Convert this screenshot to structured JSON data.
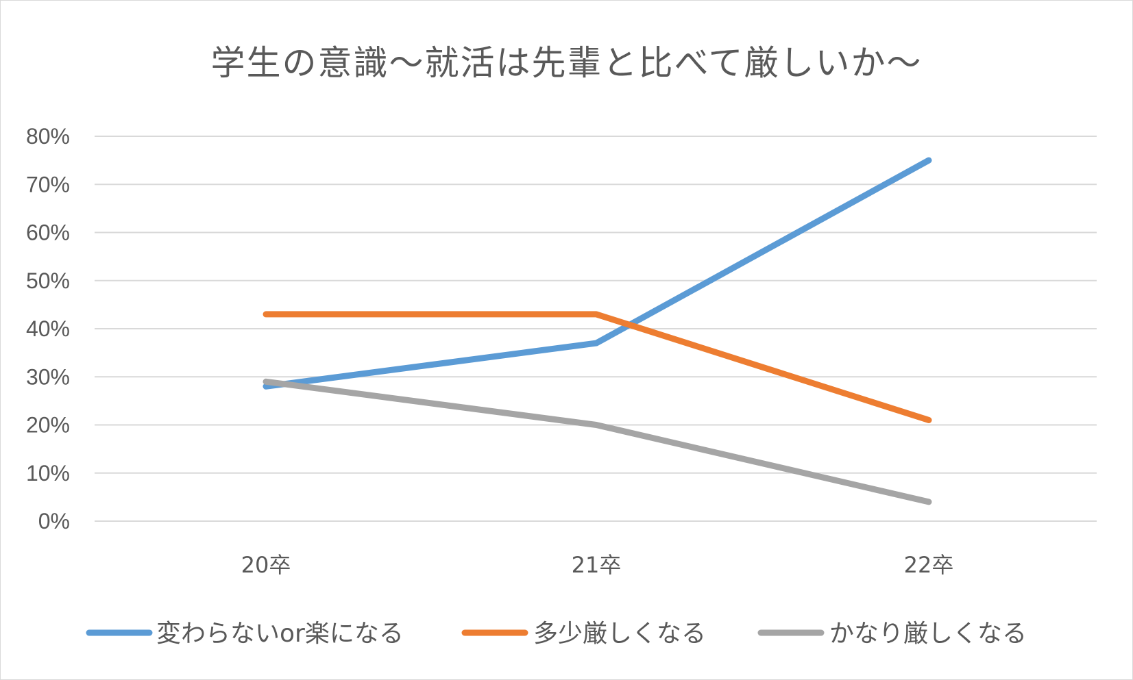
{
  "chart_data": {
    "type": "line",
    "title": "学生の意識〜就活は先輩と比べて厳しいか〜",
    "categories": [
      "20卒",
      "21卒",
      "22卒"
    ],
    "y_ticks": [
      "0%",
      "10%",
      "20%",
      "30%",
      "40%",
      "50%",
      "60%",
      "70%",
      "80%"
    ],
    "ylim": [
      0,
      80
    ],
    "grid": true,
    "legend_position": "bottom",
    "series": [
      {
        "name": "変わらないor楽になる",
        "values": [
          28,
          37,
          75
        ],
        "color": "#5b9bd5"
      },
      {
        "name": "多少厳しくなる",
        "values": [
          43,
          43,
          21
        ],
        "color": "#ed7d31"
      },
      {
        "name": "かなり厳しくなる",
        "values": [
          29,
          20,
          4
        ],
        "color": "#a5a5a5"
      }
    ]
  }
}
